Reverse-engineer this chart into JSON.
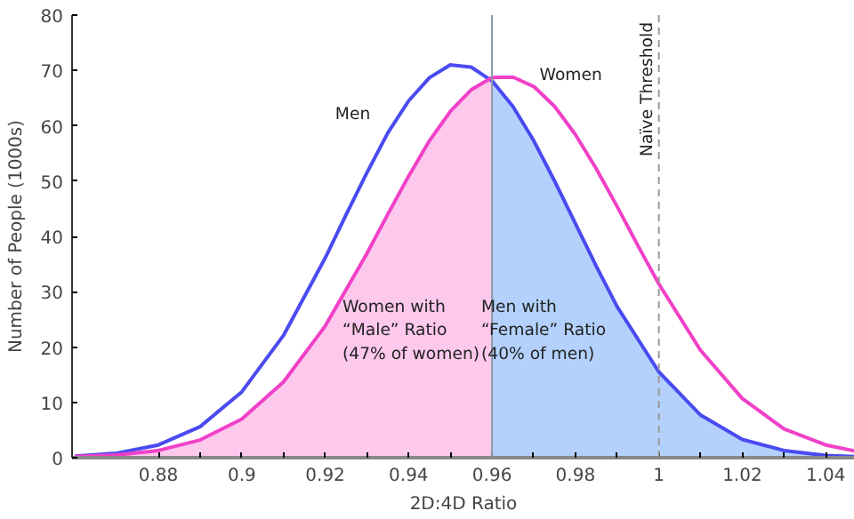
{
  "chart_data": {
    "type": "line",
    "xlabel": "2D:4D Ratio",
    "ylabel": "Number of People (1000s)",
    "xlim": [
      0.8593,
      1.047
    ],
    "ylim": [
      0,
      80
    ],
    "xticks": [
      0.88,
      {
        "value": 0.89,
        "label": null
      },
      0.9,
      {
        "value": 0.91,
        "label": null
      },
      0.92,
      {
        "value": 0.93,
        "label": null
      },
      0.94,
      {
        "value": 0.95,
        "label": null
      },
      0.96,
      {
        "value": 0.97,
        "label": null
      },
      0.98,
      {
        "value": 0.99,
        "label": null
      },
      1,
      {
        "value": 1.01,
        "label": null
      },
      1.02,
      {
        "value": 1.03,
        "label": null
      },
      1.04
    ],
    "yticks": [
      0,
      10,
      20,
      30,
      40,
      50,
      60,
      70,
      80
    ],
    "grid": false,
    "marker": "none",
    "line_style": "solid",
    "series": [
      {
        "type": "area",
        "color": "#fcc8ec",
        "x": [
          0.86,
          0.87,
          0.88,
          0.89,
          0.9,
          0.91,
          0.92,
          0.93,
          0.935,
          0.94,
          0.945,
          0.95,
          0.955,
          0.96
        ],
        "values": [
          0.2,
          0.5,
          1.3,
          3.2,
          7.0,
          13.7,
          23.8,
          36.9,
          44.0,
          50.9,
          57.3,
          62.6,
          66.5,
          68.7
        ]
      },
      {
        "type": "area",
        "color": "#b3d1fc",
        "x": [
          0.96,
          0.965,
          0.97,
          0.975,
          0.98,
          0.985,
          0.99,
          1.0,
          1.01,
          1.02,
          1.03,
          1.04,
          1.047
        ],
        "values": [
          68.1,
          63.5,
          57.3,
          50.0,
          42.3,
          34.6,
          27.3,
          15.5,
          7.7,
          3.3,
          1.3,
          0.4,
          0.2
        ]
      },
      {
        "name": "Men",
        "color": "#4a4af0",
        "x": [
          0.86,
          0.87,
          0.88,
          0.89,
          0.9,
          0.91,
          0.92,
          0.925,
          0.93,
          0.935,
          0.94,
          0.945,
          0.95,
          0.955,
          0.96,
          0.965,
          0.97,
          0.975,
          0.98,
          0.985,
          0.99,
          1.0,
          1.01,
          1.02,
          1.03,
          1.04,
          1.047
        ],
        "values": [
          0.3,
          0.8,
          2.3,
          5.6,
          11.9,
          22.1,
          36.1,
          43.9,
          51.5,
          58.7,
          64.5,
          68.7,
          71.0,
          70.6,
          68.1,
          63.5,
          57.3,
          50.0,
          42.3,
          34.6,
          27.3,
          15.5,
          7.7,
          3.3,
          1.3,
          0.4,
          0.2
        ]
      },
      {
        "name": "Women",
        "color": "#f040c8",
        "x": [
          0.86,
          0.87,
          0.88,
          0.89,
          0.9,
          0.91,
          0.92,
          0.93,
          0.935,
          0.94,
          0.945,
          0.95,
          0.955,
          0.96,
          0.965,
          0.97,
          0.975,
          0.98,
          0.985,
          0.99,
          0.995,
          1.0,
          1.01,
          1.02,
          1.03,
          1.04,
          1.047
        ],
        "values": [
          0.2,
          0.5,
          1.3,
          3.2,
          7.0,
          13.7,
          23.8,
          36.9,
          44.0,
          50.9,
          57.3,
          62.6,
          66.5,
          68.7,
          68.8,
          67.1,
          63.5,
          58.4,
          52.2,
          45.4,
          38.3,
          31.4,
          19.4,
          10.7,
          5.2,
          2.3,
          1.2
        ]
      }
    ],
    "ref_lines": [
      {
        "axis": "x",
        "value": 0.96,
        "color": "#8899aa",
        "line_style": "solid"
      },
      {
        "axis": "x",
        "value": 1,
        "label": "Naïve Threshold",
        "color": "#999999",
        "line_style": "dashed"
      }
    ],
    "annotations": [
      "Women with\n“Male” Ratio\n(47% of women)",
      "Men with\n“Female” Ratio\n(40% of men)"
    ]
  }
}
